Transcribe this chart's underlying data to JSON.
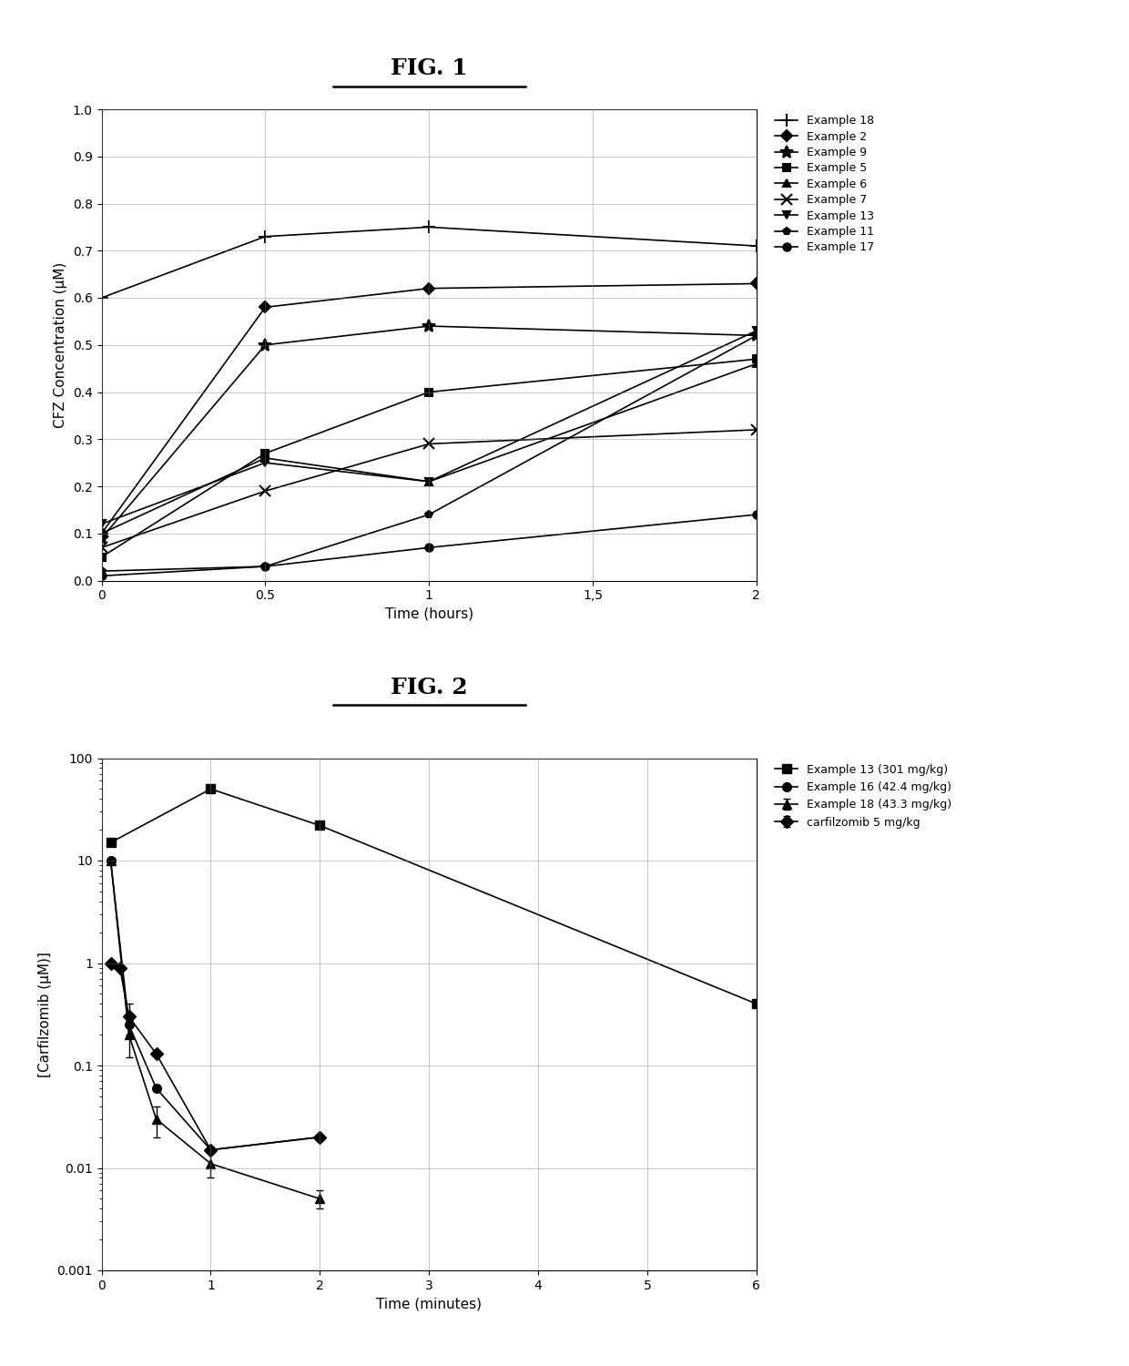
{
  "fig1": {
    "title": "FIG. 1",
    "xlabel": "Time (hours)",
    "ylabel": "CFZ Concentration (μM)",
    "xlim": [
      0,
      2
    ],
    "ylim": [
      0,
      1
    ],
    "xticks": [
      0,
      0.5,
      1,
      1.5,
      2
    ],
    "yticks": [
      0,
      0.1,
      0.2,
      0.3,
      0.4,
      0.5,
      0.6,
      0.7,
      0.8,
      0.9,
      1
    ],
    "series": [
      {
        "label": "Example 18",
        "marker": "+",
        "x": [
          0,
          0.5,
          1,
          2
        ],
        "y": [
          0.6,
          0.73,
          0.75,
          0.71
        ]
      },
      {
        "label": "Example 2",
        "marker": "D",
        "x": [
          0,
          0.5,
          1,
          2
        ],
        "y": [
          0.1,
          0.58,
          0.62,
          0.63
        ]
      },
      {
        "label": "Example 9",
        "marker": "*",
        "x": [
          0,
          0.5,
          1,
          2
        ],
        "y": [
          0.09,
          0.5,
          0.54,
          0.52
        ]
      },
      {
        "label": "Example 5",
        "marker": "s",
        "x": [
          0,
          0.5,
          1,
          2
        ],
        "y": [
          0.05,
          0.27,
          0.4,
          0.47
        ]
      },
      {
        "label": "Example 6",
        "marker": "^",
        "x": [
          0,
          0.5,
          1,
          2
        ],
        "y": [
          0.1,
          0.26,
          0.21,
          0.46
        ]
      },
      {
        "label": "Example 7",
        "marker": "x",
        "x": [
          0,
          0.5,
          1,
          2
        ],
        "y": [
          0.07,
          0.19,
          0.29,
          0.32
        ]
      },
      {
        "label": "Example 13",
        "marker": "v",
        "x": [
          0,
          0.5,
          1,
          2
        ],
        "y": [
          0.12,
          0.25,
          0.21,
          0.53
        ]
      },
      {
        "label": "Example 11",
        "marker": "p",
        "x": [
          0,
          0.5,
          1,
          2
        ],
        "y": [
          0.02,
          0.03,
          0.14,
          0.52
        ]
      },
      {
        "label": "Example 17",
        "marker": "o",
        "x": [
          0,
          0.5,
          1,
          2
        ],
        "y": [
          0.01,
          0.03,
          0.07,
          0.14
        ]
      }
    ]
  },
  "fig2": {
    "title": "FIG. 2",
    "xlabel": "Time (minutes)",
    "ylabel": "[Carfilzomib (μM)]",
    "xlim": [
      0,
      6
    ],
    "ylim_log": [
      0.001,
      100
    ],
    "xticks": [
      0,
      1,
      2,
      3,
      4,
      5,
      6
    ],
    "series": [
      {
        "label": "Example 13 (301 mg/kg)",
        "marker": "s",
        "x": [
          0.083,
          1,
          2,
          6
        ],
        "y": [
          15.0,
          50.0,
          22.0,
          0.4
        ],
        "yerr_lo": [
          0,
          0,
          0,
          0
        ],
        "yerr_hi": [
          0,
          0,
          0,
          0
        ]
      },
      {
        "label": "Example 16 (42.4 mg/kg)",
        "marker": "o",
        "x": [
          0.083,
          0.25,
          0.5,
          1,
          2
        ],
        "y": [
          10.0,
          0.25,
          0.06,
          0.015,
          0.02
        ],
        "yerr_lo": [
          0,
          0,
          0,
          0,
          0
        ],
        "yerr_hi": [
          0,
          0,
          0,
          0,
          0
        ]
      },
      {
        "label": "Example 18 (43.3 mg/kg)",
        "marker": "^",
        "x": [
          0.083,
          0.25,
          0.5,
          1,
          2
        ],
        "y": [
          10.0,
          0.2,
          0.03,
          0.011,
          0.005
        ],
        "yerr_lo": [
          0,
          0.08,
          0.01,
          0.003,
          0.001
        ],
        "yerr_hi": [
          0,
          0.08,
          0.01,
          0.003,
          0.001
        ]
      },
      {
        "label": "carfilzomib 5 mg/kg",
        "marker": "D",
        "x": [
          0.083,
          0.167,
          0.25,
          0.5,
          1,
          2
        ],
        "y": [
          1.0,
          0.9,
          0.3,
          0.13,
          0.015,
          0.02
        ],
        "yerr_lo": [
          0,
          0,
          0.1,
          0,
          0,
          0
        ],
        "yerr_hi": [
          0,
          0,
          0.1,
          0,
          0,
          0
        ]
      }
    ]
  }
}
